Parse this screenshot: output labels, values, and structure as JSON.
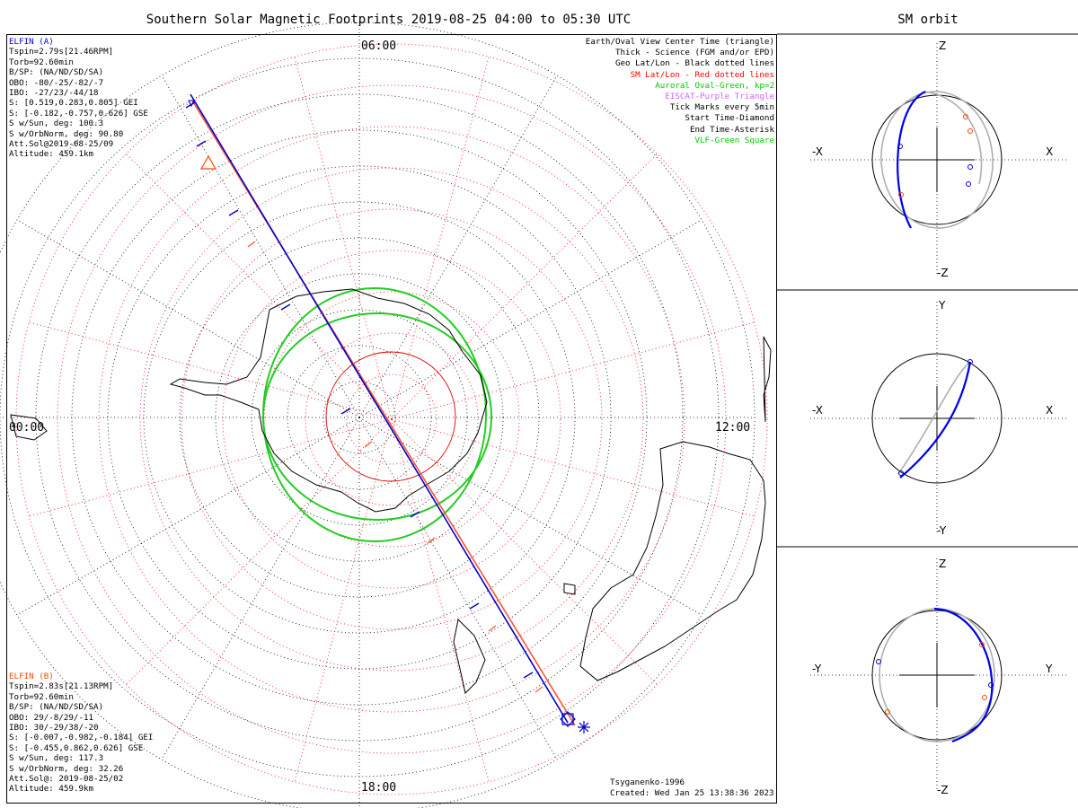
{
  "title": "Southern Solar Magnetic Footprints 2019-08-25 04:00 to 05:30 UTC",
  "orbit_title": "SM orbit",
  "clock_labels": {
    "top": "06:00",
    "left": "00:00",
    "right": "12:00",
    "bottom": "18:00"
  },
  "elfin_a": {
    "name": "ELFIN (A)",
    "color": "#0000cc",
    "lines": [
      "Tspin=2.79s[21.46RPM]",
      "Torb=92.60min",
      "B/SP: (NA/ND/SD/SA)",
      "OBO: -80/-25/-82/-7",
      "IBO: -27/23/-44/18",
      "S: [0.519,0.283,0.805] GEI",
      "S: [-0.182,-0.757,0.626] GSE",
      "S w/Sun, deg: 100.3",
      "S w/OrbNorm, deg: 90.80",
      "Att.Sol@2019-08-25/09",
      "Altitude: 459.1km"
    ]
  },
  "elfin_b": {
    "name": "ELFIN (B)",
    "color": "#ff4400",
    "lines": [
      "Tspin=2.83s[21.13RPM]",
      "Torb=92.60min",
      "B/SP: (NA/ND/SD/SA)",
      "OBO: 29/-8/29/-11",
      "IBO: 30/-29/38/-20",
      "S: [-0.007,-0.982,-0.184] GEI",
      "S: [-0.455,0.862,0.626] GSE",
      "S w/Sun, deg: 117.3",
      "S w/OrbNorm, deg: 32.26",
      "Att.Sol@: 2019-08-25/02",
      "Altitude: 459.9km"
    ]
  },
  "legend": [
    {
      "text": "Earth/Oval View Center Time (triangle)",
      "color": "#000000"
    },
    {
      "text": "Thick - Science (FGM and/or EPD)",
      "color": "#000000"
    },
    {
      "text": "Geo Lat/Lon - Black dotted lines",
      "color": "#000000"
    },
    {
      "text": "SM Lat/Lon - Red dotted lines",
      "color": "#ff0000"
    },
    {
      "text": "Auroral Oval-Green, kp=2",
      "color": "#00cc00"
    },
    {
      "text": "EISCAT-Purple Triangle",
      "color": "#cc66ff"
    },
    {
      "text": "Tick Marks every 5min",
      "color": "#000000"
    },
    {
      "text": "Start Time-Diamond",
      "color": "#000000"
    },
    {
      "text": "End Time-Asterisk",
      "color": "#000000"
    },
    {
      "text": "VLF-Green Square",
      "color": "#00cc00"
    }
  ],
  "footer": {
    "model": "Tsyganenko-1996",
    "created": "Created: Wed Jan 25 13:38:36 2023"
  },
  "panels": [
    {
      "top": "Z",
      "bottom": "-Z",
      "left": "-X",
      "right": "X"
    },
    {
      "top": "Y",
      "bottom": "-Y",
      "left": "-X",
      "right": "X"
    },
    {
      "top": "Z",
      "bottom": "-Z",
      "left": "-Y",
      "right": "Y"
    }
  ]
}
